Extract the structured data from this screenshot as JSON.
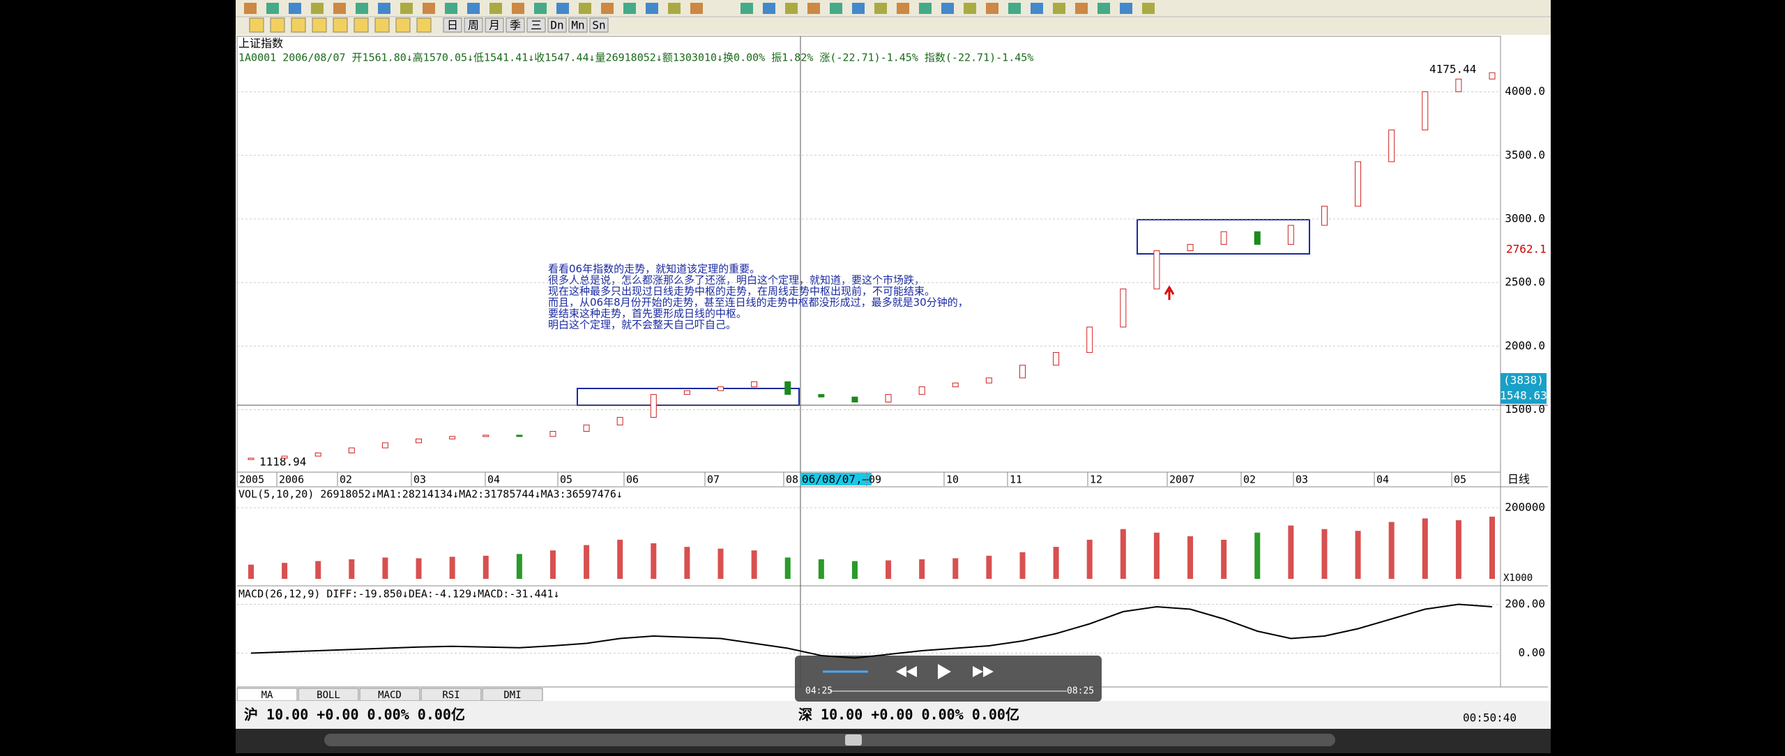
{
  "toolbar": {
    "period_buttons": [
      "日",
      "周",
      "月",
      "季",
      "三",
      "Dn",
      "Mn",
      "Sn"
    ]
  },
  "chart": {
    "title": "上证指数",
    "info": "1A0001 2006/08/07 开1561.80↓高1570.05↓低1541.41↓收1547.44↓量26918052↓额1303010↓换0.00% 振1.82% 涨(-22.71)-1.45% 指数(-22.71)-1.45%",
    "ylim": [
      1020,
      4420
    ],
    "yticks": [
      {
        "value": 1500,
        "label": "1500.0"
      },
      {
        "value": 2000,
        "label": "2000.0"
      },
      {
        "value": 2500,
        "label": "2500.0"
      },
      {
        "value": 3000,
        "label": "3000.0"
      },
      {
        "value": 3500,
        "label": "3500.0"
      },
      {
        "value": 4000,
        "label": "4000.0"
      }
    ],
    "closes": [
      1119,
      1135,
      1160,
      1200,
      1240,
      1270,
      1290,
      1300,
      1290,
      1330,
      1380,
      1440,
      1620,
      1650,
      1680,
      1720,
      1620,
      1600,
      1560,
      1620,
      1680,
      1710,
      1750,
      1850,
      1950,
      2150,
      2450,
      2750,
      2800,
      2900,
      2800,
      2950,
      3100,
      3450,
      3700,
      4000,
      4100,
      4150
    ],
    "high_label": "4175.44",
    "low_label": "1118.94",
    "current_label": "2762.1",
    "count_label": "(3838)",
    "cursor_price": "1548.63",
    "annotation": [
      "看看06年指数的走势，就知道该定理的重要。",
      "很多人总是说，怎么都涨那么多了还涨，明白这个定理，就知道，要这个市场跌，",
      "现在这种最多只出现过日线走势中枢的走势，在周线走势中枢出现前，不可能结束。",
      "而且，从06年8月份开始的走势，甚至连日线的走势中枢都没形成过，最多就是30分钟的，",
      "要结束这种走势，首先要形成日线的中枢。",
      "明白这个定理，就不会整天自己吓自己。"
    ],
    "date_labels": [
      "2005",
      "2006",
      "02",
      "03",
      "04",
      "05",
      "06",
      "07",
      "08",
      "09",
      "10",
      "11",
      "12",
      "2007",
      "02",
      "03",
      "04",
      "05"
    ],
    "cursor_date": "06/08/07,—",
    "period": "日线"
  },
  "volume": {
    "header": "VOL(5,10,20) 26918052↓MA1:28214134↓MA2:31785744↓MA3:36597476↓",
    "ylim": [
      0,
      255000
    ],
    "yticks": [
      200000
    ],
    "unit": "X1000",
    "values": [
      40000,
      45000,
      50000,
      55000,
      60000,
      58000,
      62000,
      65000,
      70000,
      80000,
      95000,
      110000,
      100000,
      90000,
      85000,
      80000,
      60000,
      55000,
      50000,
      52000,
      55000,
      58000,
      65000,
      75000,
      90000,
      110000,
      140000,
      130000,
      120000,
      110000,
      130000,
      150000,
      140000,
      135000,
      160000,
      170000,
      165000,
      175000
    ]
  },
  "macd": {
    "header": "MACD(26,12,9) DIFF:-19.850↓DEA:-4.129↓MACD:-31.441↓",
    "ylim": [
      -130,
      270
    ],
    "yticks": [
      {
        "value": 200,
        "label": "200.00"
      },
      {
        "value": 0,
        "label": "0.00"
      }
    ],
    "diff": [
      0,
      5,
      10,
      15,
      20,
      25,
      28,
      25,
      22,
      30,
      40,
      60,
      70,
      65,
      60,
      40,
      20,
      -10,
      -20,
      -5,
      10,
      20,
      30,
      50,
      80,
      120,
      170,
      190,
      180,
      140,
      90,
      60,
      70,
      100,
      140,
      180,
      200,
      190
    ]
  },
  "tabs": [
    "MA",
    "BOLL",
    "MACD",
    "RSI",
    "DMI"
  ],
  "status": {
    "sh": "沪 10.00 +0.00 0.00% 0.00亿",
    "sz": "深 10.00 +0.00 0.00% 0.00亿",
    "clock": "00:50:40"
  },
  "player": {
    "elapsed": "04:25",
    "total": "08:25"
  }
}
